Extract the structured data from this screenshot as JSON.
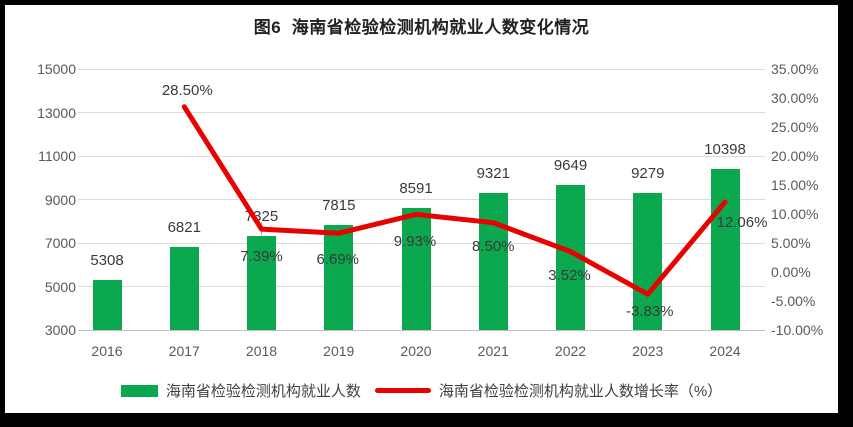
{
  "title": "图6  海南省检验检测机构就业人数变化情况",
  "chart_data": {
    "type": "bar",
    "combo": "bar+line-dual-axis",
    "categories": [
      "2016",
      "2017",
      "2018",
      "2019",
      "2020",
      "2021",
      "2022",
      "2023",
      "2024"
    ],
    "series": [
      {
        "name": "海南省检验检测机构就业人数",
        "type": "bar",
        "axis": "left",
        "color": "#0ba850",
        "values": [
          5308,
          6821,
          7325,
          7815,
          8591,
          9321,
          9649,
          9279,
          10398
        ],
        "labels": [
          "5308",
          "6821",
          "7325",
          "7815",
          "8591",
          "9321",
          "9649",
          "9279",
          "10398"
        ]
      },
      {
        "name": "海南省检验检测机构就业人数增长率（%）",
        "type": "line",
        "axis": "right",
        "color": "#e90000",
        "values": [
          null,
          28.5,
          7.39,
          6.69,
          9.93,
          8.5,
          3.52,
          -3.83,
          12.06
        ],
        "labels": [
          null,
          "28.50%",
          "7.39%",
          "6.69%",
          "9.93%",
          "8.50%",
          "3.52%",
          "-3.83%",
          "12.06%"
        ]
      }
    ],
    "left_axis": {
      "min": 3000,
      "max": 15000,
      "step": 2000,
      "ticks": [
        "15000",
        "13000",
        "11000",
        "9000",
        "7000",
        "5000",
        "3000"
      ]
    },
    "right_axis": {
      "min": -10,
      "max": 35,
      "step": 5,
      "ticks": [
        "35.00%",
        "30.00%",
        "25.00%",
        "20.00%",
        "15.00%",
        "10.00%",
        "5.00%",
        "0.00%",
        "-5.00%",
        "-10.00%"
      ]
    },
    "grid": true,
    "legend_position": "bottom"
  },
  "legend": {
    "items": [
      {
        "label": "海南省检验检测机构就业人数",
        "swatch": "bar",
        "color": "#0ba850"
      },
      {
        "label": "海南省检验检测机构就业人数增长率（%）",
        "swatch": "line",
        "color": "#e90000"
      }
    ]
  },
  "colors": {
    "frame_background": "#000000",
    "panel_background": "#ffffff",
    "bar_green": "#0ba850",
    "line_red": "#e90000",
    "gridline": "#dcdcdc",
    "axis_text": "#595959",
    "label_text": "#3a3a3a"
  }
}
